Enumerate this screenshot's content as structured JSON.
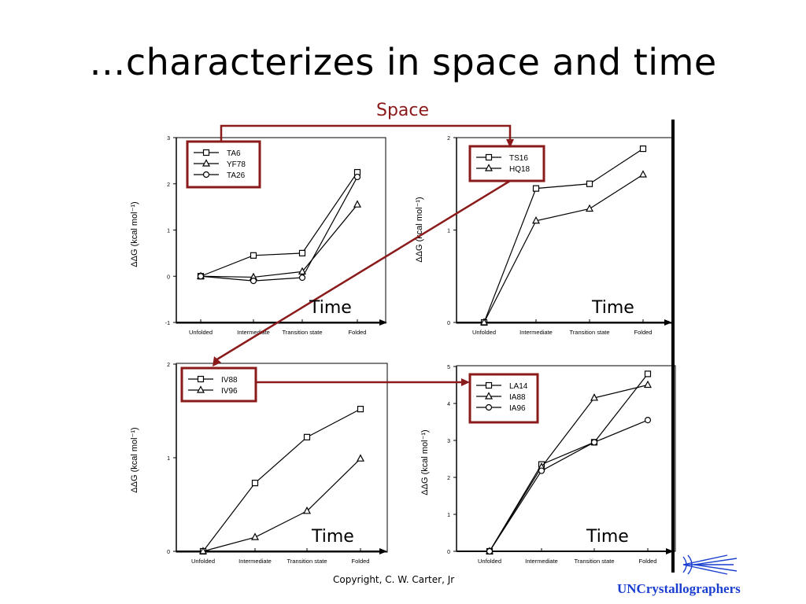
{
  "slide": {
    "title": "…characterizes in space and time",
    "space_label": "Space",
    "copyright": "Copyright, C. W. Carter, Jr",
    "logo_text": "UNCrystallographers"
  },
  "colors": {
    "arrow": "#8b1a1a",
    "logo": "#1a3fd0"
  },
  "chart_data": [
    {
      "type": "line",
      "ylabel": "ΔΔG (kcal mol⁻¹)",
      "categories": [
        "Unfolded",
        "Intermediate",
        "Transition state",
        "Folded"
      ],
      "ylim": [
        -1,
        3
      ],
      "yticks": [
        -1,
        0,
        1,
        2,
        3
      ],
      "time_label": "Time",
      "series": [
        {
          "name": "TA6",
          "marker": "square",
          "values": [
            0,
            0.45,
            0.5,
            2.25
          ]
        },
        {
          "name": "YF78",
          "marker": "triangle",
          "values": [
            0,
            -0.02,
            0.1,
            1.55
          ]
        },
        {
          "name": "TA26",
          "marker": "circle",
          "values": [
            0,
            -0.1,
            -0.03,
            2.15
          ]
        }
      ]
    },
    {
      "type": "line",
      "ylabel": "ΔΔG (kcal mol⁻¹)",
      "categories": [
        "Unfolded",
        "Intermediate",
        "Transition state",
        "Folded"
      ],
      "ylim": [
        0,
        2
      ],
      "yticks": [
        0,
        1,
        2
      ],
      "time_label": "Time",
      "series": [
        {
          "name": "TS16",
          "marker": "square",
          "values": [
            0,
            1.45,
            1.5,
            1.88
          ]
        },
        {
          "name": "HQ18",
          "marker": "triangle",
          "values": [
            0,
            1.1,
            1.23,
            1.6
          ]
        }
      ]
    },
    {
      "type": "line",
      "ylabel": "ΔΔG (kcal mol⁻¹)",
      "categories": [
        "Unfolded",
        "Intermediate",
        "Transition state",
        "Folded"
      ],
      "ylim": [
        0,
        2
      ],
      "yticks": [
        0,
        1,
        2
      ],
      "time_label": "Time",
      "series": [
        {
          "name": "IV88",
          "marker": "square",
          "values": [
            0,
            0.73,
            1.22,
            1.52
          ]
        },
        {
          "name": "IV96",
          "marker": "triangle",
          "values": [
            0,
            0.15,
            0.43,
            0.99
          ]
        }
      ]
    },
    {
      "type": "line",
      "ylabel": "ΔΔG (kcal mol⁻¹)",
      "categories": [
        "Unfolded",
        "Intermediate",
        "Transition state",
        "Folded"
      ],
      "ylim": [
        0,
        5
      ],
      "yticks": [
        0,
        1,
        2,
        3,
        4,
        5
      ],
      "time_label": "Time",
      "series": [
        {
          "name": "LA14",
          "marker": "square",
          "values": [
            0,
            2.35,
            2.95,
            4.8
          ]
        },
        {
          "name": "IA88",
          "marker": "triangle",
          "values": [
            0,
            2.28,
            4.15,
            4.5
          ]
        },
        {
          "name": "IA96",
          "marker": "circle",
          "values": [
            0,
            2.18,
            2.95,
            3.55
          ]
        }
      ]
    }
  ]
}
